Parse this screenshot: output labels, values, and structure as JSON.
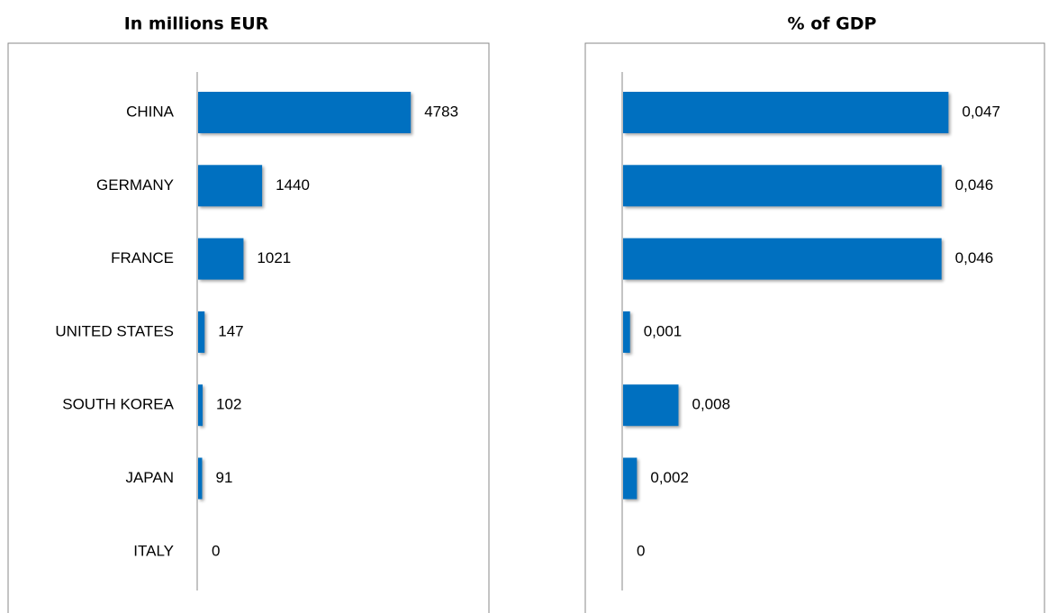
{
  "chart_data": [
    {
      "type": "bar",
      "orientation": "horizontal",
      "title": "In millions EUR",
      "categories": [
        "CHINA",
        "GERMANY",
        "FRANCE",
        "UNITED STATES",
        "SOUTH KOREA",
        "JAPAN",
        "ITALY"
      ],
      "values": [
        4783,
        1440,
        1021,
        147,
        102,
        91,
        0
      ],
      "color": "#0070c0",
      "xlim": [
        0,
        6500
      ]
    },
    {
      "type": "bar",
      "orientation": "horizontal",
      "title": "% of GDP",
      "categories": [
        null,
        null,
        null,
        null,
        null,
        null,
        null
      ],
      "values": [
        0.047,
        0.046,
        0.046,
        0.001,
        0.008,
        0.002,
        0
      ],
      "value_labels": [
        "0,047",
        "0,046",
        "0,046",
        "0,001",
        "0,008",
        "0,002",
        "0"
      ],
      "color": "#0070c0",
      "xlim": [
        0,
        0.061
      ]
    }
  ]
}
